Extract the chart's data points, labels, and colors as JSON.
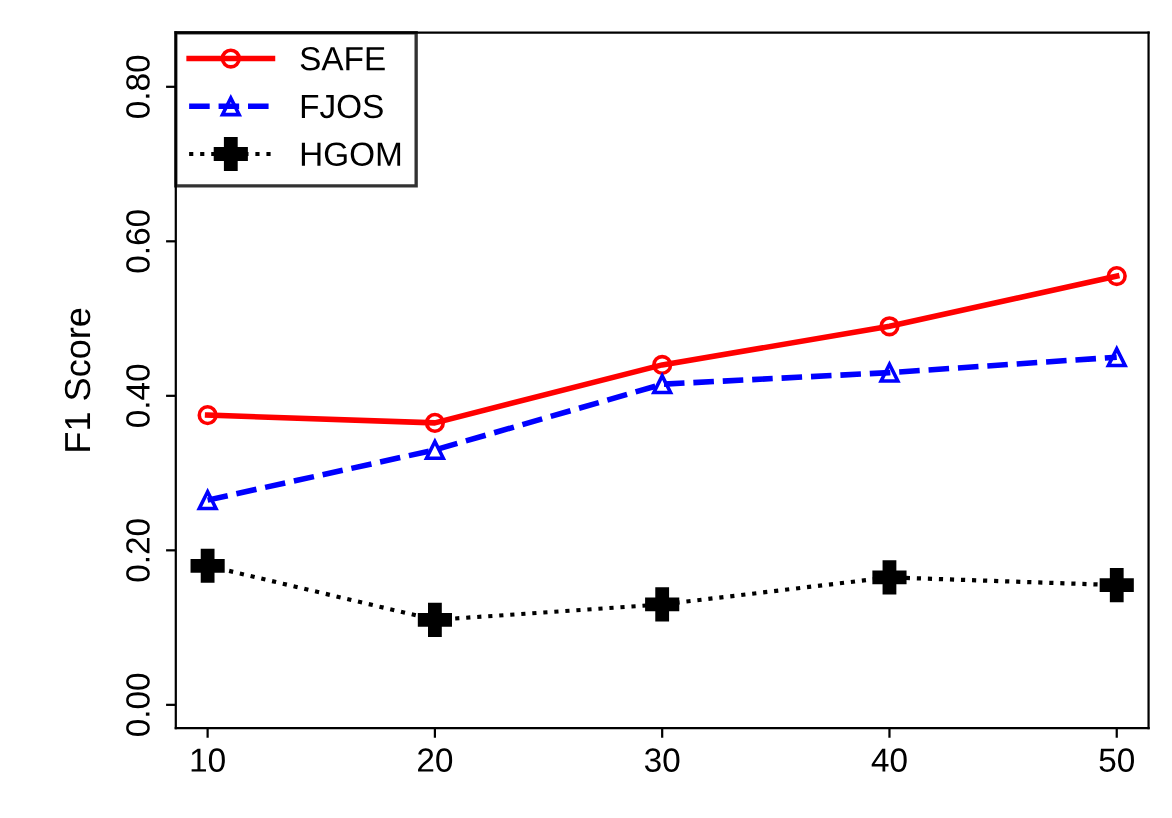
{
  "chart_data": {
    "type": "line",
    "ylabel": "F1 Score",
    "x": [
      10,
      20,
      30,
      40,
      50
    ],
    "series": [
      {
        "name": "SAFE",
        "color": "#ff0000",
        "values": [
          0.375,
          0.365,
          0.44,
          0.49,
          0.555
        ],
        "marker": "circle",
        "line_style": "solid"
      },
      {
        "name": "FJOS",
        "color": "#0000ff",
        "values": [
          0.265,
          0.33,
          0.415,
          0.43,
          0.45
        ],
        "marker": "triangle",
        "line_style": "dashed"
      },
      {
        "name": "HGOM",
        "color": "#000000",
        "values": [
          0.18,
          0.11,
          0.13,
          0.165,
          0.155
        ],
        "marker": "cross",
        "line_style": "dotted"
      }
    ],
    "xlim": [
      8.6,
      51.4
    ],
    "xticks": [
      10,
      20,
      30,
      40,
      50
    ],
    "ylim": [
      -0.03,
      0.87
    ],
    "yticks": [
      {
        "value": 0,
        "label": "0.00"
      },
      {
        "value": 0.2,
        "label": "0.20"
      },
      {
        "value": 0.4,
        "label": "0.40"
      },
      {
        "value": 0.6,
        "label": "0.60"
      },
      {
        "value": 0.8,
        "label": "0.80"
      }
    ],
    "grid": false,
    "legend": "top left"
  }
}
